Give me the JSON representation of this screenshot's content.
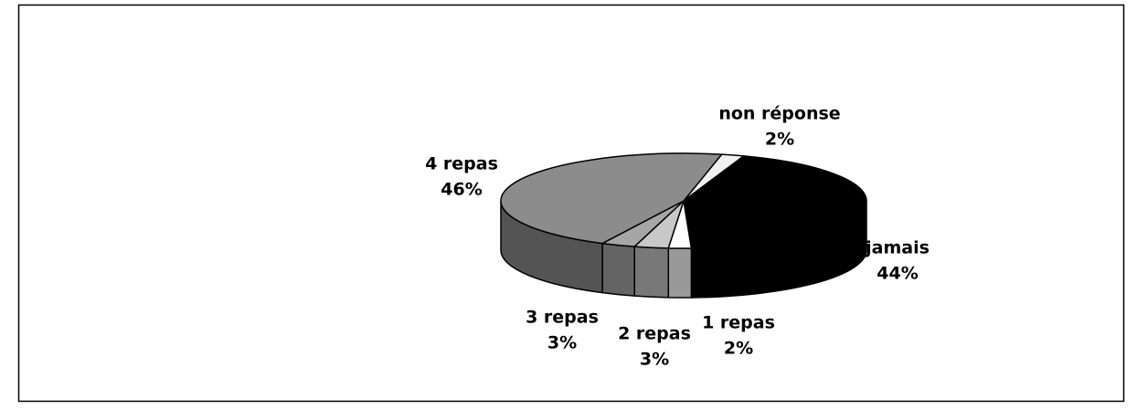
{
  "chart_data": {
    "type": "pie3d",
    "categories": [
      "non réponse",
      "jamais",
      "1 repas",
      "2 repas",
      "3 repas",
      "4 repas"
    ],
    "values": [
      2,
      44,
      2,
      3,
      3,
      46
    ],
    "value_labels": [
      "2%",
      "44%",
      "2%",
      "3%",
      "3%",
      "46%"
    ],
    "colors": [
      "#f2f2f2",
      "#000000",
      "#ffffff",
      "#c8c8c8",
      "#a6a6a6",
      "#8c8c8c"
    ]
  }
}
